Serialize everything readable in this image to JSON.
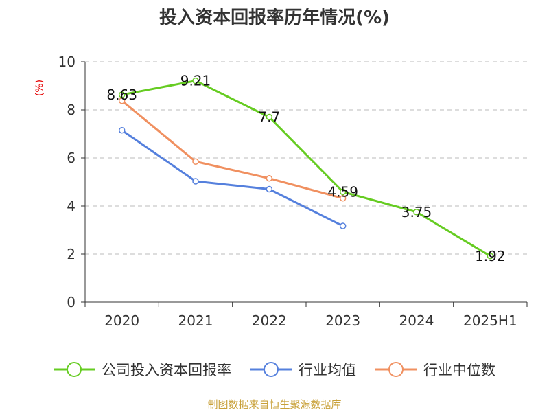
{
  "chart_data": {
    "type": "line",
    "title": "投入资本回报率历年情况(%)",
    "ylabel": "(%)",
    "categories": [
      "2020",
      "2021",
      "2022",
      "2023",
      "2024",
      "2025H1"
    ],
    "ylim": [
      0,
      10
    ],
    "yticks": [
      0,
      2,
      4,
      6,
      8,
      10
    ],
    "grid": true,
    "legend_position": "bottom",
    "series": [
      {
        "name": "公司投入资本回报率",
        "color": "#66cc22",
        "values": [
          8.63,
          9.21,
          7.7,
          4.59,
          3.75,
          1.92
        ],
        "labels": [
          "8.63",
          "9.21",
          "7.7",
          "4.59",
          "3.75",
          "1.92"
        ]
      },
      {
        "name": "行业均值",
        "color": "#5580dd",
        "values": [
          7.15,
          5.03,
          4.7,
          3.17,
          null,
          null
        ]
      },
      {
        "name": "行业中位数",
        "color": "#f09060",
        "values": [
          8.38,
          5.85,
          5.15,
          4.32,
          null,
          null
        ]
      }
    ]
  },
  "source": "制图数据来自恒生聚源数据库"
}
